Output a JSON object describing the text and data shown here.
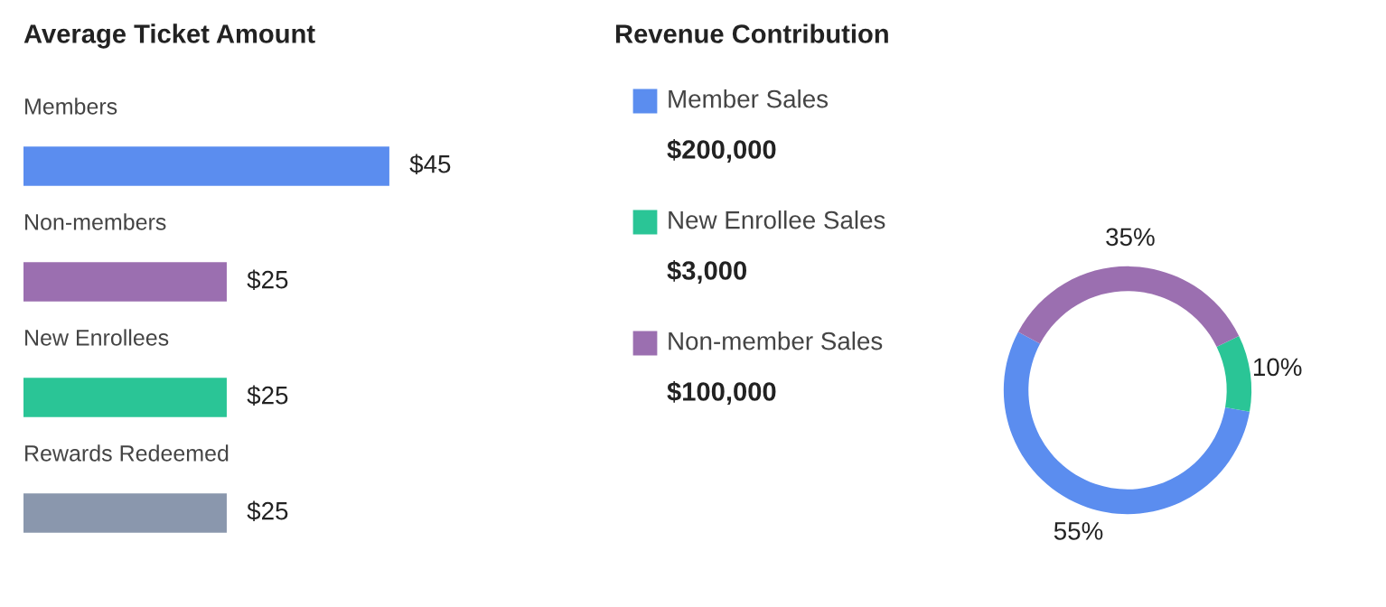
{
  "chart_data": [
    {
      "type": "bar",
      "orientation": "horizontal",
      "title": "Average Ticket Amount",
      "categories": [
        "Members",
        "Non-members",
        "New Enrollees",
        "Rewards Redeemed"
      ],
      "values": [
        45,
        25,
        25,
        25
      ],
      "colors": [
        "#5b8def",
        "#9b6fb0",
        "#2ac596",
        "#8a97ad"
      ],
      "value_labels": [
        "$45",
        "$25",
        "$25",
        "$25"
      ]
    },
    {
      "type": "donut",
      "title": "Revenue Contribution",
      "categories": [
        "Member Sales",
        "New Enrollee Sales",
        "Non-member Sales"
      ],
      "values": [
        55,
        10,
        35
      ],
      "colors": [
        "#5b8def",
        "#2ac596",
        "#9b6fb0"
      ],
      "value_labels": [
        "55%",
        "10%",
        "35%"
      ],
      "annotations": [
        "$200,000",
        "$3,000",
        "$100,000"
      ],
      "legend": "left"
    }
  ]
}
